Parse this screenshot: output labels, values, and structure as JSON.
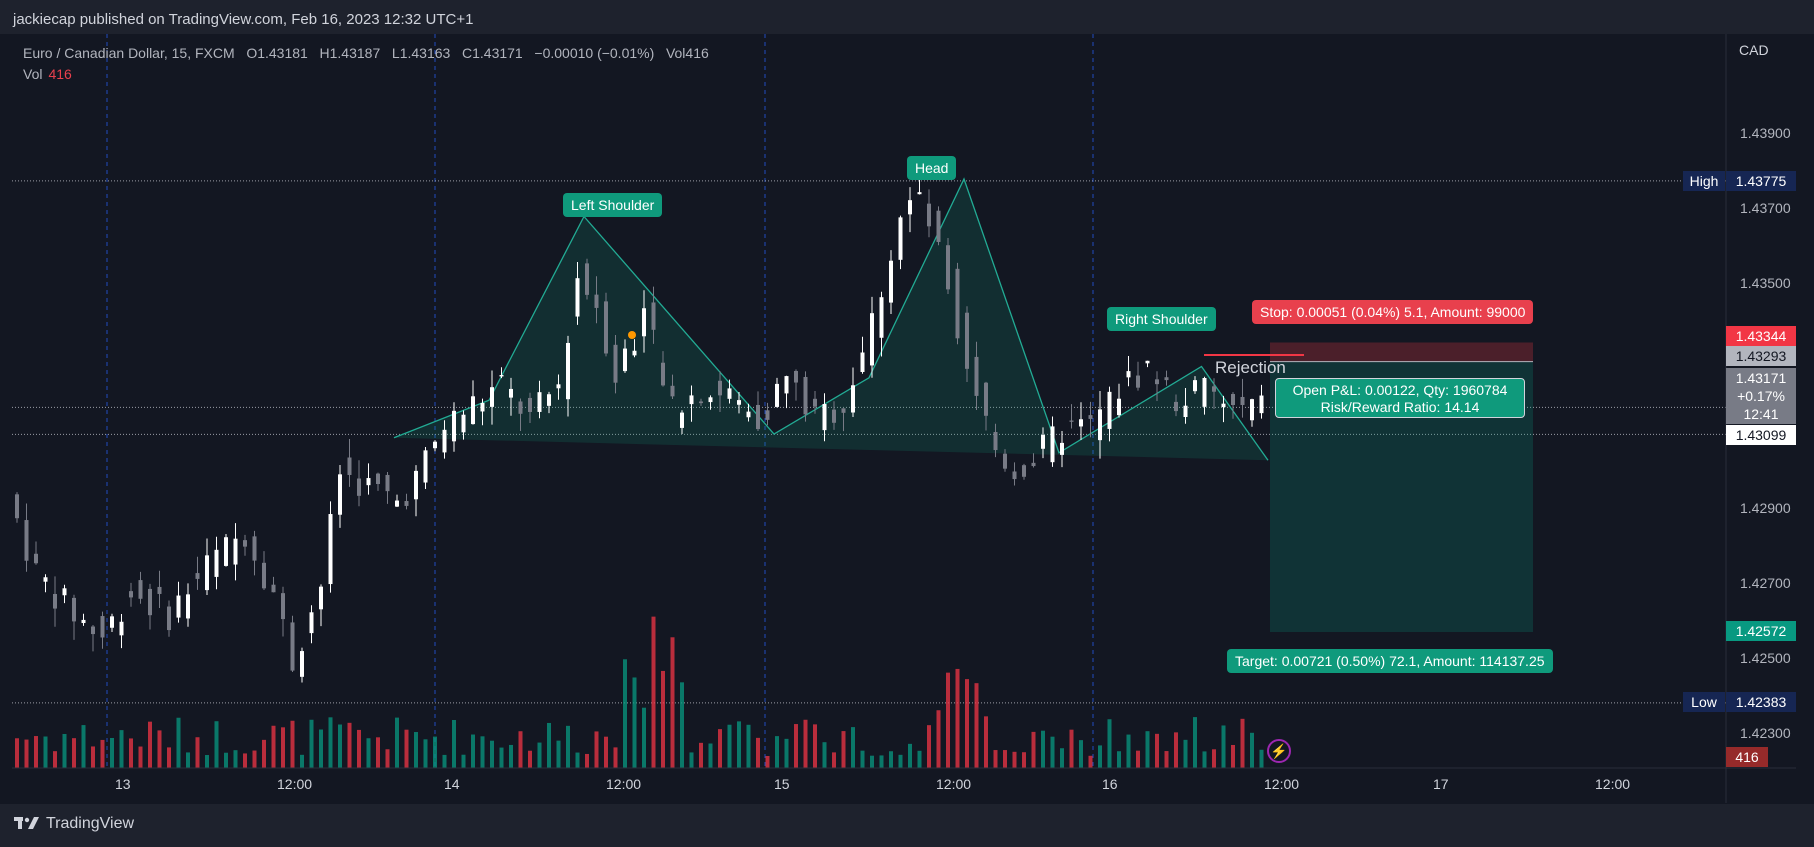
{
  "publisher_line": "jackiecap published on TradingView.com, Feb 16, 2023 12:32 UTC+1",
  "brand": "TradingView",
  "symbol": {
    "title": "Euro / Canadian Dollar, 15, FXCM",
    "o_label": "O",
    "o": "1.43181",
    "h_label": "H",
    "h": "1.43187",
    "l_label": "L",
    "l": "1.43163",
    "c_label": "C",
    "c": "1.43171",
    "change": "−0.00010 (−0.01%)",
    "vol_label": "Vol",
    "vol": "416"
  },
  "vol_row": {
    "label": "Vol",
    "value": "416"
  },
  "currency": "CAD",
  "annotations": {
    "left_shoulder": "Left Shoulder",
    "head": "Head",
    "right_shoulder": "Right Shoulder",
    "rejection": "Rejection",
    "stop": "Stop: 0.00051 (0.04%) 5.1, Amount: 99000",
    "target": "Target: 0.00721 (0.50%) 72.1, Amount: 114137.25",
    "pnl_line1": "Open P&L: 0.00122, Qty: 1960784",
    "pnl_line2": "Risk/Reward Ratio: 14.14"
  },
  "price_tags": {
    "high_label": "High",
    "high": "1.43775",
    "low_label": "Low",
    "low": "1.42383",
    "stop": "1.43344",
    "entry": "1.43293",
    "current": "1.43171",
    "current_change": "+0.17%",
    "countdown": "12:41",
    "neckline": "1.43099",
    "target": "1.42572",
    "volume": "416"
  },
  "colors": {
    "up": "#089981",
    "down": "#f23645",
    "pattern": "#0f9a7c",
    "stop": "#e8404d",
    "panel": "#131722"
  },
  "chart_data": {
    "type": "candlestick",
    "title": "Euro / Canadian Dollar, 15, FXCM",
    "y_ticks": [
      1.439,
      1.437,
      1.435,
      1.429,
      1.427,
      1.425,
      1.423
    ],
    "y_tick_labels": [
      "1.43900",
      "1.43700",
      "1.43500",
      "1.42900",
      "1.42700",
      "1.42500",
      "1.42300"
    ],
    "x_tick_labels": [
      "13",
      "12:00",
      "14",
      "12:00",
      "15",
      "12:00",
      "16",
      "12:00",
      "17",
      "12:00"
    ],
    "ylim": [
      1.4226,
      1.4416
    ],
    "high": 1.43775,
    "low": 1.42383,
    "pattern_points": [
      {
        "bar": 40,
        "price": 1.4309
      },
      {
        "bar": 50,
        "price": 1.4319
      },
      {
        "bar": 60,
        "price": 1.4368
      },
      {
        "bar": 80,
        "price": 1.431
      },
      {
        "bar": 90,
        "price": 1.4325
      },
      {
        "bar": 100,
        "price": 1.4378
      },
      {
        "bar": 110,
        "price": 1.4305
      },
      {
        "bar": 125,
        "price": 1.4328
      },
      {
        "bar": 132,
        "price": 1.4303
      }
    ],
    "position": {
      "stop": 1.43344,
      "entry": 1.43293,
      "target": 1.42572
    },
    "price_path": [
      [
        0,
        1.4294
      ],
      [
        3,
        1.4273
      ],
      [
        7,
        1.4262
      ],
      [
        10,
        1.4256
      ],
      [
        13,
        1.4268
      ],
      [
        17,
        1.4262
      ],
      [
        21,
        1.4275
      ],
      [
        25,
        1.4284
      ],
      [
        28,
        1.4268
      ],
      [
        30,
        1.4249
      ],
      [
        33,
        1.427
      ],
      [
        35,
        1.43
      ],
      [
        38,
        1.4296
      ],
      [
        41,
        1.4292
      ],
      [
        43,
        1.4298
      ],
      [
        46,
        1.4312
      ],
      [
        49,
        1.4318
      ],
      [
        52,
        1.4323
      ],
      [
        55,
        1.4314
      ],
      [
        58,
        1.4323
      ],
      [
        60,
        1.4352
      ],
      [
        62,
        1.4345
      ],
      [
        64,
        1.4326
      ],
      [
        67,
        1.4342
      ],
      [
        70,
        1.4316
      ],
      [
        73,
        1.4322
      ],
      [
        76,
        1.432
      ],
      [
        79,
        1.4314
      ],
      [
        82,
        1.4325
      ],
      [
        85,
        1.4314
      ],
      [
        88,
        1.4318
      ],
      [
        91,
        1.434
      ],
      [
        94,
        1.4368
      ],
      [
        96,
        1.4373
      ],
      [
        99,
        1.435
      ],
      [
        101,
        1.433
      ],
      [
        104,
        1.4306
      ],
      [
        106,
        1.43
      ],
      [
        108,
        1.4303
      ],
      [
        111,
        1.4311
      ],
      [
        114,
        1.4312
      ],
      [
        117,
        1.4322
      ],
      [
        120,
        1.4328
      ],
      [
        123,
        1.4319
      ],
      [
        126,
        1.4322
      ],
      [
        129,
        1.4316
      ],
      [
        131,
        1.4317
      ]
    ]
  }
}
